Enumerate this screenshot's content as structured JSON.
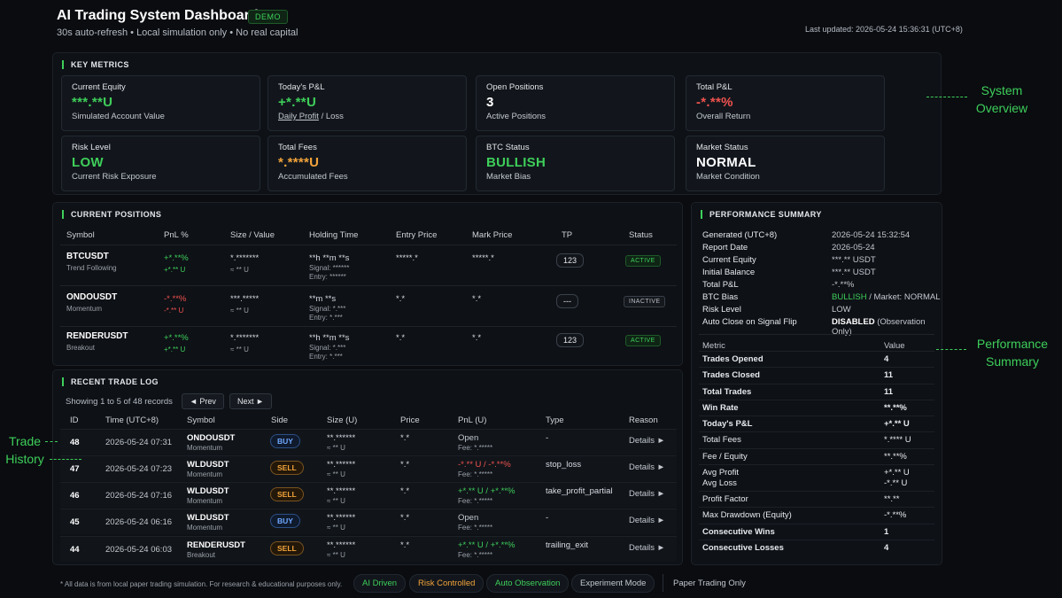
{
  "header": {
    "title": "AI Trading System Dashboard",
    "badge": "DEMO",
    "subtitle": "30s auto-refresh • Local simulation only • No real capital",
    "last_updated": "Last updated: 2026-05-24 15:36:31 (UTC+8)"
  },
  "key_metrics": {
    "title": "KEY METRICS",
    "cards": [
      {
        "label": "Current Equity",
        "value": "***.**U",
        "sub": "Simulated Account Value",
        "color": "#3ecf5a"
      },
      {
        "label": "Today's P&L",
        "value": "+*.**U",
        "sub_a": "Daily Profit",
        "sub_b": " / Loss",
        "color": "#3ecf5a"
      },
      {
        "label": "Open Positions",
        "value": "3",
        "sub": "Active Positions",
        "color": "#ffffff"
      },
      {
        "label": "Total P&L",
        "value": "-*.**%",
        "sub": "Overall Return",
        "color": "#f0524f"
      },
      {
        "label": "Risk Level",
        "value": "LOW",
        "sub": "Current Risk Exposure",
        "color": "#3ecf5a"
      },
      {
        "label": "Total Fees",
        "value": "*.****U",
        "sub": "Accumulated Fees",
        "color": "#f2a33a"
      },
      {
        "label": "BTC Status",
        "value": "BULLISH",
        "sub": "Market Bias",
        "color": "#3ecf5a"
      },
      {
        "label": "Market Status",
        "value": "NORMAL",
        "sub": "Market Condition",
        "color": "#ffffff"
      }
    ]
  },
  "positions": {
    "title": "CURRENT POSITIONS",
    "headers": [
      "Symbol",
      "PnL %",
      "Size / Value",
      "Holding Time",
      "Entry Price",
      "Mark Price",
      "TP",
      "Status"
    ],
    "rows": [
      {
        "symbol": "BTCUSDT",
        "strategy": "Trend Following",
        "pnl": "+*.**%",
        "pnl_u": "+*.** U",
        "pnl_class": "green",
        "size": "*.*******",
        "value": "≈ ** U",
        "hold": "**h **m **s",
        "signal": "Signal: ******",
        "entry_sub": "Entry: ******",
        "entry": "*****.*",
        "mark": "*****.*",
        "tp": "123",
        "status": "ACTIVE"
      },
      {
        "symbol": "ONDOUSDT",
        "strategy": "Momentum",
        "pnl": "-*.**%",
        "pnl_u": "-*.** U",
        "pnl_class": "red",
        "size": "***.*****",
        "value": "≈ ** U",
        "hold": "**m **s",
        "signal": "Signal: *.***",
        "entry_sub": "Entry: *.***",
        "entry": "*.*",
        "mark": "*.*",
        "tp": "---",
        "status": "INACTIVE"
      },
      {
        "symbol": "RENDERUSDT",
        "strategy": "Breakout",
        "pnl": "+*.**%",
        "pnl_u": "+*.** U",
        "pnl_class": "green",
        "size": "*.*******",
        "value": "≈ ** U",
        "hold": "**h **m **s",
        "signal": "Signal: *.***",
        "entry_sub": "Entry: *.***",
        "entry": "*.*",
        "mark": "*.*",
        "tp": "123",
        "status": "ACTIVE"
      }
    ]
  },
  "trade_log": {
    "title": "RECENT TRADE LOG",
    "showing": "Showing 1 to 5 of 48 records",
    "prev": "◄  Prev",
    "next": "Next  ►",
    "headers": [
      "ID",
      "Time (UTC+8)",
      "Symbol",
      "Side",
      "Size (U)",
      "Price",
      "PnL (U)",
      "Type",
      "Reason"
    ],
    "rows": [
      {
        "id": "48",
        "time": "2026-05-24 07:31",
        "symbol": "ONDOUSDT",
        "strategy": "Momentum",
        "side": "BUY",
        "size": "**.******",
        "size_u": "≈ ** U",
        "price": "*.*",
        "pnl": "Open",
        "pnl_class": "dim",
        "fee": "Fee: *.*****",
        "type": "-",
        "reason": "Details ►"
      },
      {
        "id": "47",
        "time": "2026-05-24 07:23",
        "symbol": "WLDUSDT",
        "strategy": "Momentum",
        "side": "SELL",
        "size": "**.******",
        "size_u": "≈ ** U",
        "price": "*.*",
        "pnl": "-*.** U / -*.**%",
        "pnl_class": "red",
        "fee": "Fee: *.*****",
        "type": "stop_loss",
        "reason": "Details ►"
      },
      {
        "id": "46",
        "time": "2026-05-24 07:16",
        "symbol": "WLDUSDT",
        "strategy": "Momentum",
        "side": "SELL",
        "size": "**.******",
        "size_u": "≈ ** U",
        "price": "*.*",
        "pnl": "+*.** U / +*.**%",
        "pnl_class": "green",
        "fee": "Fee: *.*****",
        "type": "take_profit_partial",
        "reason": "Details ►"
      },
      {
        "id": "45",
        "time": "2026-05-24 06:16",
        "symbol": "WLDUSDT",
        "strategy": "Momentum",
        "side": "BUY",
        "size": "**.******",
        "size_u": "≈ ** U",
        "price": "*.*",
        "pnl": "Open",
        "pnl_class": "dim",
        "fee": "Fee: *.*****",
        "type": "-",
        "reason": "Details ►"
      },
      {
        "id": "44",
        "time": "2026-05-24 06:03",
        "symbol": "RENDERUSDT",
        "strategy": "Breakout",
        "side": "SELL",
        "size": "**.******",
        "size_u": "≈ ** U",
        "price": "*.*",
        "pnl": "+*.** U / +*.**%",
        "pnl_class": "green",
        "fee": "Fee: *.*****",
        "type": "trailing_exit",
        "reason": "Details ►"
      }
    ]
  },
  "performance": {
    "title": "PERFORMANCE SUMMARY",
    "info": [
      {
        "k": "Generated (UTC+8)",
        "v": "2026-05-24 15:32:54",
        "c": ""
      },
      {
        "k": "Report Date",
        "v": "2026-05-24",
        "c": ""
      },
      {
        "k": "Current Equity",
        "v": "***.** USDT",
        "c": ""
      },
      {
        "k": "Initial Balance",
        "v": "***.** USDT",
        "c": ""
      },
      {
        "k": "Total P&L",
        "v": "-*.**%",
        "c": "red"
      },
      {
        "k": "BTC Bias",
        "v_a": "BULLISH",
        "v_b": " / Market: NORMAL",
        "c": "green"
      },
      {
        "k": "Risk Level",
        "v": "LOW",
        "c": "green"
      },
      {
        "k": "Auto Close on Signal Flip",
        "v_a": "DISABLED",
        "v_b": " (Observation Only)",
        "c": "white"
      }
    ],
    "metric_header": "Metric",
    "value_header": "Value",
    "metrics": [
      {
        "k": "Trades Opened",
        "v": "4",
        "bold": true
      },
      {
        "k": "Trades Closed",
        "v": "11",
        "bold": true
      },
      {
        "k": "Total Trades",
        "v": "11",
        "bold": true
      },
      {
        "k": "Win Rate",
        "v": "**.**%",
        "bold": true
      },
      {
        "k": "Today's P&L",
        "v": "+*.** U",
        "bold": true
      },
      {
        "k": "Total Fees",
        "v": "*.**** U",
        "bold": false
      },
      {
        "k": "Fee / Equity",
        "v": "**.**%",
        "bold": false
      },
      {
        "k": "Avg Profit",
        "v": "+*.** U",
        "bold": false
      },
      {
        "k": "Avg Loss",
        "v": "-*.** U",
        "bold": false
      },
      {
        "k": "Profit Factor",
        "v": "**.**",
        "bold": false
      },
      {
        "k": "Max Drawdown (Equity)",
        "v": "-*.**%",
        "bold": false
      },
      {
        "k": "Consecutive Wins",
        "v": "1",
        "bold": true
      },
      {
        "k": "Consecutive Losses",
        "v": "4",
        "bold": true
      }
    ]
  },
  "annotations": {
    "system_overview": "System\nOverview",
    "performance_summary": "Performance\nSummary",
    "trade_history": "Trade\nHistory"
  },
  "footer": {
    "note": "* All data is from local paper trading simulation. For research & educational purposes only.",
    "chips": [
      {
        "label": "AI Driven",
        "color": "#3ecf5a"
      },
      {
        "label": "Risk Controlled",
        "color": "#f2a33a"
      },
      {
        "label": "Auto Observation",
        "color": "#3ecf5a"
      },
      {
        "label": "Experiment Mode",
        "color": "#c3c8cf"
      }
    ],
    "paper_only": "Paper Trading Only"
  }
}
